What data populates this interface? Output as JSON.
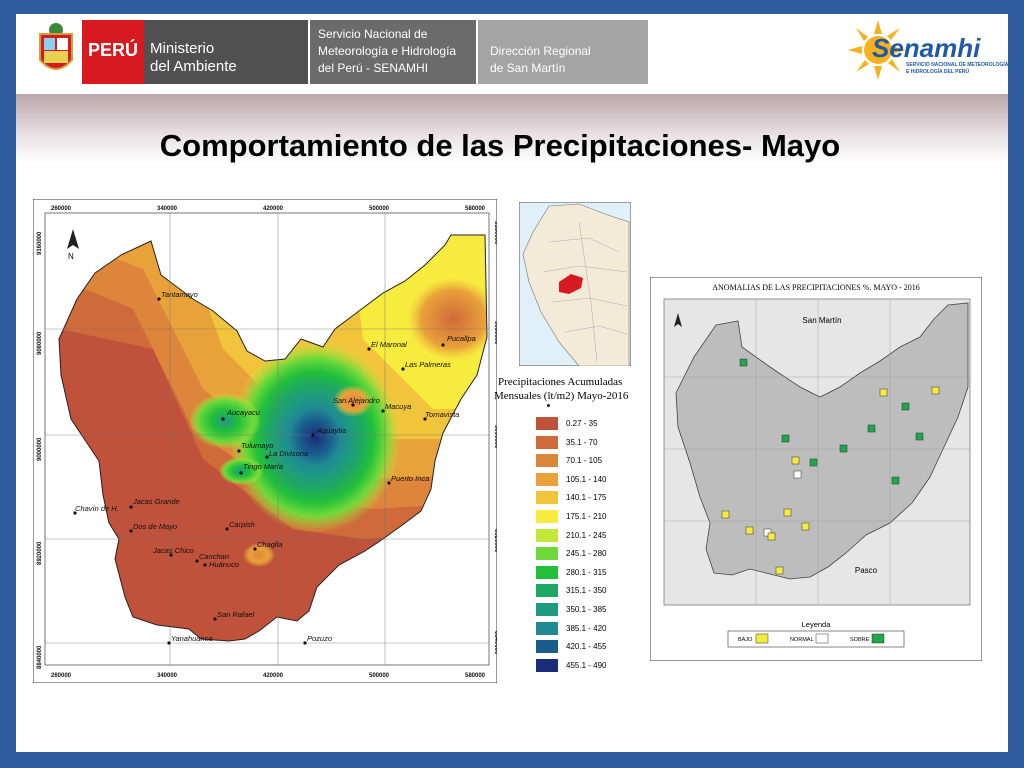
{
  "header": {
    "peru_label": "PERÚ",
    "ministry_line1": "Ministerio",
    "ministry_line2": "del Ambiente",
    "senamhi_line1": "Servicio Nacional de",
    "senamhi_line2": "Meteorología e Hidrología",
    "senamhi_line3": "del Perú - SENAMHI",
    "regional_line1": "Dirección Regional",
    "regional_line2": "de San Martín",
    "logo_name": "Senamhi",
    "logo_subtitle1": "SERVICIO NACIONAL DE METEOROLOGÍA",
    "logo_subtitle2": "E HIDROLOGÍA DEL PERÚ"
  },
  "title": "Comportamiento de las Precipitaciones- Mayo",
  "main_map": {
    "top_ticks": [
      "260000",
      "340000",
      "420000",
      "500000",
      "580000"
    ],
    "left_ticks": [
      "9160000",
      "9080000",
      "9000000",
      "8920000",
      "8840000"
    ],
    "north": "N",
    "places": [
      "Tantamayo",
      "El Maronal",
      "Pucallpa",
      "Las Palmeras",
      "San Alejandro",
      "Macuya",
      "Tornavista",
      "Aucayacu",
      "Aguaytia",
      "Tulumayo",
      "La Divisoria",
      "Tingo María",
      "Puerto Inca",
      "Chavín de H.",
      "Jacas Grande",
      "Dos de Mayo",
      "Carpish",
      "Jacas Chico",
      "Canchan",
      "Chaglla",
      "Huánuco",
      "San Rafael",
      "Yanahuanca",
      "Pozuzo"
    ]
  },
  "legend": {
    "title_line1": "Precipitaciones Acumuladas",
    "title_line2": "Mensuales (lt/m2) Mayo-2016",
    "items": [
      {
        "label": "0.27 - 35",
        "color": "#c0513a"
      },
      {
        "label": "35.1 - 70",
        "color": "#cf6a3a"
      },
      {
        "label": "70.1 - 105",
        "color": "#dd853a"
      },
      {
        "label": "105.1 - 140",
        "color": "#e9a23a"
      },
      {
        "label": "140.1 - 175",
        "color": "#f2c43c"
      },
      {
        "label": "175.1 - 210",
        "color": "#f7ec3e"
      },
      {
        "label": "210.1 - 245",
        "color": "#c2e83a"
      },
      {
        "label": "245.1 - 280",
        "color": "#6ed83a"
      },
      {
        "label": "280.1 - 315",
        "color": "#22c03a"
      },
      {
        "label": "315.1 - 350",
        "color": "#1fa862"
      },
      {
        "label": "350.1 - 385",
        "color": "#1f9a80"
      },
      {
        "label": "385.1 - 420",
        "color": "#1f8a94"
      },
      {
        "label": "420.1 - 455",
        "color": "#1a5d8c"
      },
      {
        "label": "455.1 - 490",
        "color": "#1a2d7a"
      }
    ]
  },
  "anomaly_map": {
    "title": "ANOMALIAS DE LAS PRECIPITACIONES %. MAYO - 2016",
    "region_top": "San Martín",
    "region_bottom": "Pasco",
    "legend_title": "Leyenda",
    "legend_items": [
      {
        "label": "BAJO",
        "color": "#f7ec3e"
      },
      {
        "label": "NORMAL",
        "color": "#ffffff"
      },
      {
        "label": "SOBRE",
        "color": "#1fa84a"
      }
    ]
  }
}
